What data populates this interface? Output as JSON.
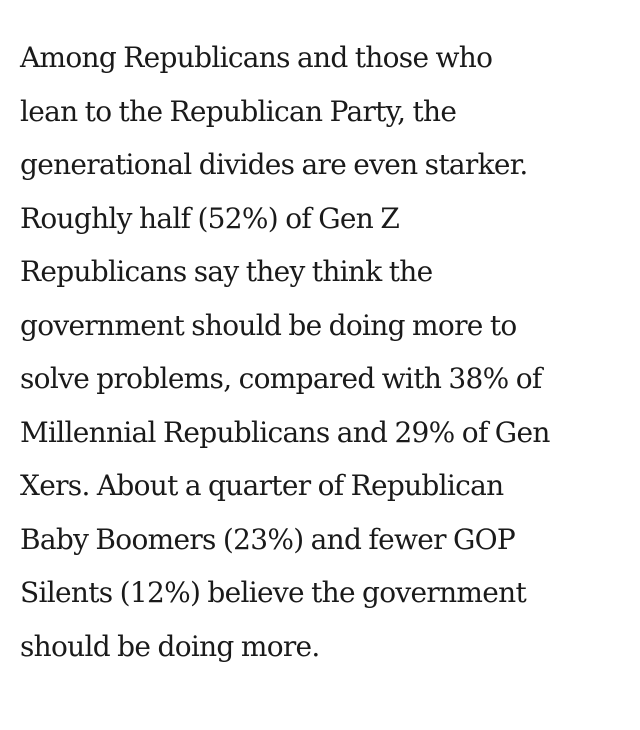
{
  "article": {
    "paragraph": {
      "lines": [
        "Among Republicans and those who",
        "lean to the Republican Party, the",
        "generational divides are even starker.",
        "Roughly half (52%) of Gen Z",
        "Republicans say they think the",
        "government should be doing more to",
        "solve problems, compared with 38% of",
        "Millennial Republicans and 29% of Gen",
        "Xers. About a quarter of Republican",
        "Baby Boomers (23%) and fewer GOP",
        "Silents (12%) believe the government",
        "should be doing more."
      ]
    }
  }
}
